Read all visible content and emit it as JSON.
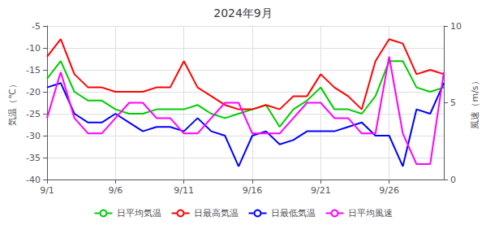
{
  "chart_data": {
    "type": "line",
    "title": "2024年9月",
    "x": [
      1,
      2,
      3,
      4,
      5,
      6,
      7,
      8,
      9,
      10,
      11,
      12,
      13,
      14,
      15,
      16,
      17,
      18,
      19,
      20,
      21,
      22,
      23,
      24,
      25,
      26,
      27,
      28,
      29,
      30
    ],
    "series": [
      {
        "name": "日平均気温",
        "color": "#00cc00",
        "values": [
          -17,
          -13,
          -20,
          -22,
          -22,
          -24,
          -25,
          -25,
          -24,
          -24,
          -24,
          -23,
          -25,
          -26,
          -25,
          -24,
          -23,
          -28,
          -24,
          -22,
          -19,
          -24,
          -24,
          -25,
          -21,
          -13,
          -13,
          -19,
          -20,
          -19
        ]
      },
      {
        "name": "日最高気温",
        "color": "#ff0000",
        "values": [
          -12,
          -8,
          -16,
          -19,
          -19,
          -20,
          -20,
          -20,
          -19,
          -19,
          -13,
          -19,
          -21,
          -23,
          -24,
          -24,
          -23,
          -24,
          -21,
          -21,
          -16,
          -19,
          -21,
          -24,
          -13,
          -8,
          -9,
          -16,
          -15,
          -16
        ]
      },
      {
        "name": "日最低気温",
        "color": "#0000ff",
        "values": [
          -19,
          -18,
          -25,
          -27,
          -27,
          -25,
          -27,
          -29,
          -28,
          -28,
          -29,
          -26,
          -29,
          -30,
          -37,
          -30,
          -29,
          -32,
          -31,
          -29,
          -29,
          -29,
          -28,
          -27,
          -30,
          -30,
          -37,
          -24,
          -25,
          -18
        ]
      },
      {
        "name": "日平均風速",
        "color": "#ff00ff",
        "axis": "y2",
        "values": [
          4,
          7,
          4,
          3,
          3,
          4,
          5,
          5,
          4,
          4,
          3,
          3,
          4,
          5,
          5,
          3,
          3,
          3,
          4,
          5,
          5,
          4,
          4,
          3,
          3,
          8,
          3,
          1,
          1,
          7
        ]
      }
    ],
    "xlim": [
      1,
      30
    ],
    "xticks": [
      {
        "value": 1,
        "label": "9/1"
      },
      {
        "value": 6,
        "label": "9/6"
      },
      {
        "value": 11,
        "label": "9/11"
      },
      {
        "value": 16,
        "label": "9/16"
      },
      {
        "value": 21,
        "label": "9/21"
      },
      {
        "value": 26,
        "label": "9/26"
      }
    ],
    "ylim": [
      -40,
      -5
    ],
    "yticks": [
      -40,
      -35,
      -30,
      -25,
      -20,
      -15,
      -10,
      -5
    ],
    "y2lim": [
      0,
      10
    ],
    "y2ticks": [
      0,
      5,
      10
    ],
    "ylabel": "気温（℃）",
    "y2label": "風速（m/s）",
    "grid": true,
    "legend": "bottom"
  }
}
